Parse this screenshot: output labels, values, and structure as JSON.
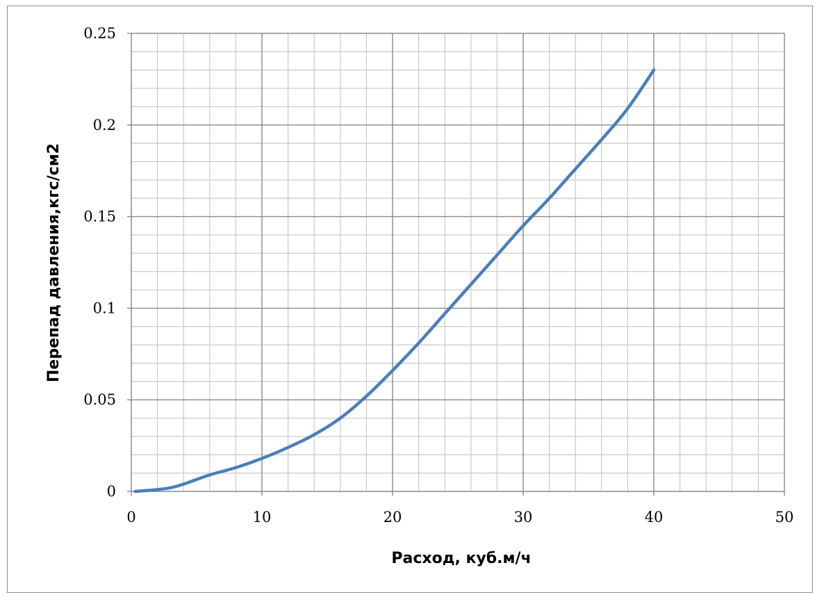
{
  "chart_data": {
    "type": "line",
    "title": "",
    "xlabel": "Расход, куб.м/ч",
    "ylabel": "Перепад давления,кгс/см2",
    "xlim": [
      0,
      50
    ],
    "ylim": [
      0,
      0.25
    ],
    "x_ticks": [
      "0",
      "10",
      "20",
      "30",
      "40",
      "50"
    ],
    "y_ticks": [
      "0",
      "0.05",
      "0.1",
      "0.15",
      "0.2",
      "0.25"
    ],
    "grid": true,
    "legend": "none",
    "series": [
      {
        "color": "#4a7ebb",
        "x": [
          0.3,
          2,
          3,
          4,
          6,
          8,
          10,
          12,
          14,
          16,
          18,
          20,
          22,
          24,
          26,
          28,
          30,
          32,
          34,
          36,
          38,
          40
        ],
        "y": [
          0,
          0.001,
          0.002,
          0.004,
          0.009,
          0.013,
          0.018,
          0.024,
          0.031,
          0.04,
          0.052,
          0.066,
          0.081,
          0.097,
          0.113,
          0.129,
          0.145,
          0.16,
          0.176,
          0.192,
          0.209,
          0.23
        ]
      }
    ]
  }
}
